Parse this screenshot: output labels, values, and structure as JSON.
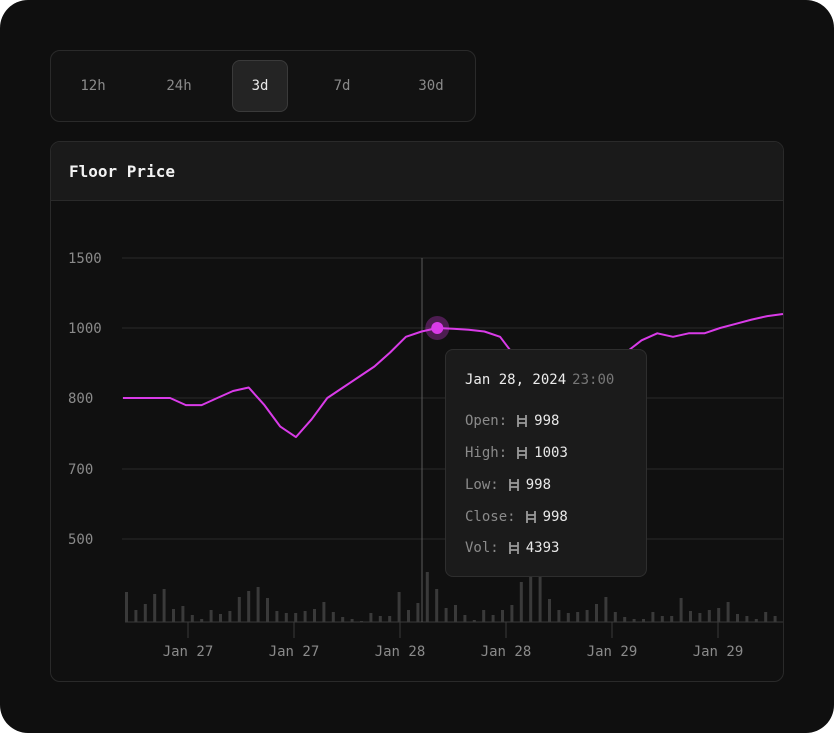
{
  "timeframes": {
    "items": [
      "12h",
      "24h",
      "3d",
      "7d",
      "30d"
    ],
    "active": "3d"
  },
  "card": {
    "title": "Floor Price"
  },
  "tooltip": {
    "date": "Jan 28, 2024",
    "time": "23:00",
    "open_label": "Open:",
    "open_value": "998",
    "high_label": "High:",
    "high_value": "1003",
    "low_label": "Low:",
    "low_value": "998",
    "close_label": "Close:",
    "close_value": "998",
    "vol_label": "Vol:",
    "vol_value": "4393",
    "currency_icon": "ethereum-icon"
  },
  "colors": {
    "line": "#d93be8",
    "volume": "#3a3a3a",
    "grid": "#2a2a2a",
    "axis_text": "#8a8a8a"
  },
  "chart_data": {
    "type": "line",
    "title": "Floor Price",
    "y_ticks": [
      500,
      700,
      800,
      1000,
      1500
    ],
    "x_tick_labels": [
      "Jan 27",
      "Jan 27",
      "Jan 28",
      "Jan 28",
      "Jan 29",
      "Jan 29"
    ],
    "grid": true,
    "series": [
      {
        "values": [
          800,
          800,
          800,
          800,
          790,
          790,
          800,
          820,
          830,
          790,
          760,
          745,
          770,
          800,
          830,
          860,
          890,
          930,
          975,
          990,
          1000,
          998,
          995,
          990,
          975,
          915,
          860,
          835,
          830,
          840,
          865,
          900,
          930,
          965,
          985,
          975,
          985,
          985,
          1000,
          1030,
          1060,
          1085,
          1100
        ]
      }
    ],
    "highlighted_point": {
      "index": 20,
      "value": 1000
    },
    "volume": [
      30,
      12,
      18,
      28,
      33,
      13,
      16,
      7,
      3,
      12,
      8,
      11,
      25,
      31,
      35,
      24,
      11,
      9,
      9,
      11,
      13,
      20,
      10,
      5,
      3,
      1,
      9,
      6,
      6,
      30,
      12,
      19,
      50,
      33,
      14,
      17,
      7,
      2,
      12,
      7,
      12,
      17,
      40,
      50,
      55,
      23,
      12,
      9,
      10,
      12,
      18,
      25,
      10,
      5,
      3,
      3,
      10,
      6,
      6,
      24,
      11,
      9,
      12,
      14,
      20,
      8,
      6,
      3,
      10,
      6
    ]
  }
}
